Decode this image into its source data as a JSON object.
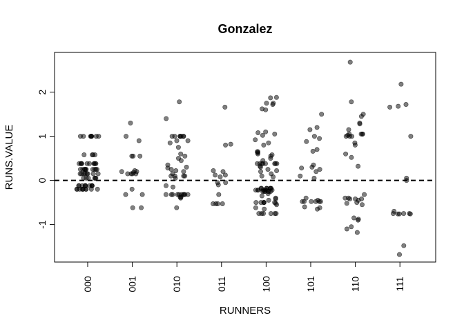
{
  "chart_data": {
    "type": "scatter",
    "title": "Gonzalez",
    "xlabel": "RUNNERS",
    "ylabel": "RUNS.VALUE",
    "categories": [
      "000",
      "001",
      "010",
      "011",
      "100",
      "101",
      "110",
      "111"
    ],
    "yticks": [
      "-1",
      "0",
      "1",
      "2"
    ],
    "ylim": [
      -1.85,
      2.9
    ],
    "grid": false,
    "legend": "none",
    "reference_line": {
      "y": 0,
      "style": "dashed"
    },
    "point_color": "#000000",
    "points": [
      {
        "x": "000",
        "y": 1.0
      },
      {
        "x": "000",
        "y": 1.0
      },
      {
        "x": "000",
        "y": 1.0
      },
      {
        "x": "000",
        "y": 1.0
      },
      {
        "x": "000",
        "y": 1.0
      },
      {
        "x": "000",
        "y": 1.0
      },
      {
        "x": "000",
        "y": 1.0
      },
      {
        "x": "000",
        "y": 1.0
      },
      {
        "x": "000",
        "y": 0.58
      },
      {
        "x": "000",
        "y": 0.58
      },
      {
        "x": "000",
        "y": 0.58
      },
      {
        "x": "000",
        "y": 0.58
      },
      {
        "x": "000",
        "y": 0.38
      },
      {
        "x": "000",
        "y": 0.38
      },
      {
        "x": "000",
        "y": 0.38
      },
      {
        "x": "000",
        "y": 0.38
      },
      {
        "x": "000",
        "y": 0.38
      },
      {
        "x": "000",
        "y": 0.38
      },
      {
        "x": "000",
        "y": 0.38
      },
      {
        "x": "000",
        "y": 0.38
      },
      {
        "x": "000",
        "y": 0.38
      },
      {
        "x": "000",
        "y": 0.38
      },
      {
        "x": "000",
        "y": 0.25
      },
      {
        "x": "000",
        "y": 0.25
      },
      {
        "x": "000",
        "y": 0.25
      },
      {
        "x": "000",
        "y": 0.25
      },
      {
        "x": "000",
        "y": 0.25
      },
      {
        "x": "000",
        "y": 0.25
      },
      {
        "x": "000",
        "y": 0.25
      },
      {
        "x": "000",
        "y": 0.25
      },
      {
        "x": "000",
        "y": 0.25
      },
      {
        "x": "000",
        "y": 0.25
      },
      {
        "x": "000",
        "y": 0.15
      },
      {
        "x": "000",
        "y": 0.15
      },
      {
        "x": "000",
        "y": 0.15
      },
      {
        "x": "000",
        "y": 0.15
      },
      {
        "x": "000",
        "y": 0.15
      },
      {
        "x": "000",
        "y": 0.15
      },
      {
        "x": "000",
        "y": 0.15
      },
      {
        "x": "000",
        "y": 0.15
      },
      {
        "x": "000",
        "y": 0.05
      },
      {
        "x": "000",
        "y": 0.05
      },
      {
        "x": "000",
        "y": 0.05
      },
      {
        "x": "000",
        "y": 0.05
      },
      {
        "x": "000",
        "y": 0.05
      },
      {
        "x": "000",
        "y": 0.05
      },
      {
        "x": "000",
        "y": -0.12
      },
      {
        "x": "000",
        "y": -0.12
      },
      {
        "x": "000",
        "y": -0.12
      },
      {
        "x": "000",
        "y": -0.12
      },
      {
        "x": "000",
        "y": -0.12
      },
      {
        "x": "000",
        "y": -0.12
      },
      {
        "x": "000",
        "y": -0.12
      },
      {
        "x": "000",
        "y": -0.12
      },
      {
        "x": "000",
        "y": -0.12
      },
      {
        "x": "000",
        "y": -0.12
      },
      {
        "x": "000",
        "y": -0.2
      },
      {
        "x": "000",
        "y": -0.2
      },
      {
        "x": "000",
        "y": -0.2
      },
      {
        "x": "000",
        "y": -0.2
      },
      {
        "x": "000",
        "y": -0.2
      },
      {
        "x": "000",
        "y": -0.2
      },
      {
        "x": "000",
        "y": -0.2
      },
      {
        "x": "000",
        "y": -0.2
      },
      {
        "x": "000",
        "y": -0.2
      },
      {
        "x": "000",
        "y": -0.2
      },
      {
        "x": "001",
        "y": 1.3
      },
      {
        "x": "001",
        "y": 1.0
      },
      {
        "x": "001",
        "y": 0.9
      },
      {
        "x": "001",
        "y": 0.55
      },
      {
        "x": "001",
        "y": 0.55
      },
      {
        "x": "001",
        "y": 0.55
      },
      {
        "x": "001",
        "y": 0.22
      },
      {
        "x": "001",
        "y": 0.2
      },
      {
        "x": "001",
        "y": 0.2
      },
      {
        "x": "001",
        "y": 0.18
      },
      {
        "x": "001",
        "y": 0.15
      },
      {
        "x": "001",
        "y": 0.15
      },
      {
        "x": "001",
        "y": 0.15
      },
      {
        "x": "001",
        "y": 0.15
      },
      {
        "x": "001",
        "y": -0.2
      },
      {
        "x": "001",
        "y": -0.32
      },
      {
        "x": "001",
        "y": -0.32
      },
      {
        "x": "001",
        "y": -0.62
      },
      {
        "x": "001",
        "y": -0.62
      },
      {
        "x": "010",
        "y": 1.78
      },
      {
        "x": "010",
        "y": 1.4
      },
      {
        "x": "010",
        "y": 1.0
      },
      {
        "x": "010",
        "y": 1.0
      },
      {
        "x": "010",
        "y": 1.0
      },
      {
        "x": "010",
        "y": 1.0
      },
      {
        "x": "010",
        "y": 1.0
      },
      {
        "x": "010",
        "y": 1.0
      },
      {
        "x": "010",
        "y": 1.0
      },
      {
        "x": "010",
        "y": 0.9
      },
      {
        "x": "010",
        "y": 0.9
      },
      {
        "x": "010",
        "y": 0.85
      },
      {
        "x": "010",
        "y": 0.75
      },
      {
        "x": "010",
        "y": 0.6
      },
      {
        "x": "010",
        "y": 0.55
      },
      {
        "x": "010",
        "y": 0.5
      },
      {
        "x": "010",
        "y": 0.45
      },
      {
        "x": "010",
        "y": 0.35
      },
      {
        "x": "010",
        "y": 0.3
      },
      {
        "x": "010",
        "y": 0.28
      },
      {
        "x": "010",
        "y": 0.25
      },
      {
        "x": "010",
        "y": 0.22
      },
      {
        "x": "010",
        "y": 0.2
      },
      {
        "x": "010",
        "y": 0.15
      },
      {
        "x": "010",
        "y": 0.1
      },
      {
        "x": "010",
        "y": 0.1
      },
      {
        "x": "010",
        "y": 0.1
      },
      {
        "x": "010",
        "y": 0.1
      },
      {
        "x": "010",
        "y": 0.05
      },
      {
        "x": "010",
        "y": -0.12
      },
      {
        "x": "010",
        "y": -0.15
      },
      {
        "x": "010",
        "y": -0.32
      },
      {
        "x": "010",
        "y": -0.32
      },
      {
        "x": "010",
        "y": -0.32
      },
      {
        "x": "010",
        "y": -0.32
      },
      {
        "x": "010",
        "y": -0.32
      },
      {
        "x": "010",
        "y": -0.32
      },
      {
        "x": "010",
        "y": -0.32
      },
      {
        "x": "010",
        "y": -0.32
      },
      {
        "x": "010",
        "y": -0.32
      },
      {
        "x": "010",
        "y": -0.32
      },
      {
        "x": "010",
        "y": -0.38
      },
      {
        "x": "010",
        "y": -0.38
      },
      {
        "x": "010",
        "y": -0.4
      },
      {
        "x": "010",
        "y": -0.62
      },
      {
        "x": "011",
        "y": 1.66
      },
      {
        "x": "011",
        "y": 0.82
      },
      {
        "x": "011",
        "y": 0.8
      },
      {
        "x": "011",
        "y": 0.22
      },
      {
        "x": "011",
        "y": 0.2
      },
      {
        "x": "011",
        "y": 0.12
      },
      {
        "x": "011",
        "y": 0.12
      },
      {
        "x": "011",
        "y": 0.08
      },
      {
        "x": "011",
        "y": -0.05
      },
      {
        "x": "011",
        "y": -0.05
      },
      {
        "x": "011",
        "y": -0.1
      },
      {
        "x": "011",
        "y": -0.32
      },
      {
        "x": "011",
        "y": -0.53
      },
      {
        "x": "011",
        "y": -0.53
      },
      {
        "x": "011",
        "y": -0.53
      },
      {
        "x": "011",
        "y": -0.53
      },
      {
        "x": "100",
        "y": 1.88
      },
      {
        "x": "100",
        "y": 1.87
      },
      {
        "x": "100",
        "y": 1.75
      },
      {
        "x": "100",
        "y": 1.75
      },
      {
        "x": "100",
        "y": 1.72
      },
      {
        "x": "100",
        "y": 1.62
      },
      {
        "x": "100",
        "y": 1.6
      },
      {
        "x": "100",
        "y": 1.1
      },
      {
        "x": "100",
        "y": 1.08
      },
      {
        "x": "100",
        "y": 1.05
      },
      {
        "x": "100",
        "y": 1.02
      },
      {
        "x": "100",
        "y": 0.92
      },
      {
        "x": "100",
        "y": 0.85
      },
      {
        "x": "100",
        "y": 0.8
      },
      {
        "x": "100",
        "y": 0.65
      },
      {
        "x": "100",
        "y": 0.65
      },
      {
        "x": "100",
        "y": 0.62
      },
      {
        "x": "100",
        "y": 0.6
      },
      {
        "x": "100",
        "y": 0.58
      },
      {
        "x": "100",
        "y": 0.55
      },
      {
        "x": "100",
        "y": 0.5
      },
      {
        "x": "100",
        "y": 0.45
      },
      {
        "x": "100",
        "y": 0.38
      },
      {
        "x": "100",
        "y": 0.38
      },
      {
        "x": "100",
        "y": 0.38
      },
      {
        "x": "100",
        "y": 0.38
      },
      {
        "x": "100",
        "y": 0.38
      },
      {
        "x": "100",
        "y": 0.38
      },
      {
        "x": "100",
        "y": 0.38
      },
      {
        "x": "100",
        "y": 0.38
      },
      {
        "x": "100",
        "y": 0.32
      },
      {
        "x": "100",
        "y": 0.3
      },
      {
        "x": "100",
        "y": 0.25
      },
      {
        "x": "100",
        "y": 0.22
      },
      {
        "x": "100",
        "y": 0.2
      },
      {
        "x": "100",
        "y": 0.15
      },
      {
        "x": "100",
        "y": 0.1
      },
      {
        "x": "100",
        "y": 0.08
      },
      {
        "x": "100",
        "y": -0.18
      },
      {
        "x": "100",
        "y": -0.18
      },
      {
        "x": "100",
        "y": -0.18
      },
      {
        "x": "100",
        "y": -0.18
      },
      {
        "x": "100",
        "y": -0.18
      },
      {
        "x": "100",
        "y": -0.18
      },
      {
        "x": "100",
        "y": -0.18
      },
      {
        "x": "100",
        "y": -0.22
      },
      {
        "x": "100",
        "y": -0.22
      },
      {
        "x": "100",
        "y": -0.22
      },
      {
        "x": "100",
        "y": -0.22
      },
      {
        "x": "100",
        "y": -0.22
      },
      {
        "x": "100",
        "y": -0.22
      },
      {
        "x": "100",
        "y": -0.22
      },
      {
        "x": "100",
        "y": -0.25
      },
      {
        "x": "100",
        "y": -0.25
      },
      {
        "x": "100",
        "y": -0.25
      },
      {
        "x": "100",
        "y": -0.25
      },
      {
        "x": "100",
        "y": -0.25
      },
      {
        "x": "100",
        "y": -0.25
      },
      {
        "x": "100",
        "y": -0.3
      },
      {
        "x": "100",
        "y": -0.35
      },
      {
        "x": "100",
        "y": -0.4
      },
      {
        "x": "100",
        "y": -0.42
      },
      {
        "x": "100",
        "y": -0.45
      },
      {
        "x": "100",
        "y": -0.5
      },
      {
        "x": "100",
        "y": -0.5
      },
      {
        "x": "100",
        "y": -0.5
      },
      {
        "x": "100",
        "y": -0.5
      },
      {
        "x": "100",
        "y": -0.5
      },
      {
        "x": "100",
        "y": -0.5
      },
      {
        "x": "100",
        "y": -0.52
      },
      {
        "x": "100",
        "y": -0.55
      },
      {
        "x": "100",
        "y": -0.62
      },
      {
        "x": "100",
        "y": -0.65
      },
      {
        "x": "100",
        "y": -0.75
      },
      {
        "x": "100",
        "y": -0.75
      },
      {
        "x": "100",
        "y": -0.75
      },
      {
        "x": "100",
        "y": -0.75
      },
      {
        "x": "100",
        "y": -0.75
      },
      {
        "x": "100",
        "y": -0.75
      },
      {
        "x": "101",
        "y": 1.5
      },
      {
        "x": "101",
        "y": 1.2
      },
      {
        "x": "101",
        "y": 1.15
      },
      {
        "x": "101",
        "y": 1.0
      },
      {
        "x": "101",
        "y": 0.95
      },
      {
        "x": "101",
        "y": 0.88
      },
      {
        "x": "101",
        "y": 0.7
      },
      {
        "x": "101",
        "y": 0.66
      },
      {
        "x": "101",
        "y": 0.35
      },
      {
        "x": "101",
        "y": 0.3
      },
      {
        "x": "101",
        "y": 0.28
      },
      {
        "x": "101",
        "y": 0.25
      },
      {
        "x": "101",
        "y": 0.2
      },
      {
        "x": "101",
        "y": 0.1
      },
      {
        "x": "101",
        "y": 0.05
      },
      {
        "x": "101",
        "y": -0.4
      },
      {
        "x": "101",
        "y": -0.45
      },
      {
        "x": "101",
        "y": -0.48
      },
      {
        "x": "101",
        "y": -0.48
      },
      {
        "x": "101",
        "y": -0.48
      },
      {
        "x": "101",
        "y": -0.48
      },
      {
        "x": "101",
        "y": -0.48
      },
      {
        "x": "101",
        "y": -0.48
      },
      {
        "x": "101",
        "y": -0.6
      },
      {
        "x": "101",
        "y": -0.62
      },
      {
        "x": "101",
        "y": -0.65
      },
      {
        "x": "110",
        "y": 2.68
      },
      {
        "x": "110",
        "y": 1.78
      },
      {
        "x": "110",
        "y": 1.5
      },
      {
        "x": "110",
        "y": 1.45
      },
      {
        "x": "110",
        "y": 1.3
      },
      {
        "x": "110",
        "y": 1.28
      },
      {
        "x": "110",
        "y": 1.15
      },
      {
        "x": "110",
        "y": 1.05
      },
      {
        "x": "110",
        "y": 1.05
      },
      {
        "x": "110",
        "y": 1.05
      },
      {
        "x": "110",
        "y": 1.05
      },
      {
        "x": "110",
        "y": 1.02
      },
      {
        "x": "110",
        "y": 1.0
      },
      {
        "x": "110",
        "y": 1.0
      },
      {
        "x": "110",
        "y": 1.0
      },
      {
        "x": "110",
        "y": 0.85
      },
      {
        "x": "110",
        "y": 0.8
      },
      {
        "x": "110",
        "y": 0.6
      },
      {
        "x": "110",
        "y": 0.52
      },
      {
        "x": "110",
        "y": 0.32
      },
      {
        "x": "110",
        "y": -0.32
      },
      {
        "x": "110",
        "y": -0.4
      },
      {
        "x": "110",
        "y": -0.4
      },
      {
        "x": "110",
        "y": -0.42
      },
      {
        "x": "110",
        "y": -0.42
      },
      {
        "x": "110",
        "y": -0.42
      },
      {
        "x": "110",
        "y": -0.45
      },
      {
        "x": "110",
        "y": -0.5
      },
      {
        "x": "110",
        "y": -0.52
      },
      {
        "x": "110",
        "y": -0.55
      },
      {
        "x": "110",
        "y": -0.85
      },
      {
        "x": "110",
        "y": -0.88
      },
      {
        "x": "110",
        "y": -0.9
      },
      {
        "x": "110",
        "y": -1.05
      },
      {
        "x": "110",
        "y": -1.1
      },
      {
        "x": "110",
        "y": -1.18
      },
      {
        "x": "111",
        "y": 2.18
      },
      {
        "x": "111",
        "y": 1.72
      },
      {
        "x": "111",
        "y": 1.68
      },
      {
        "x": "111",
        "y": 1.66
      },
      {
        "x": "111",
        "y": 1.0
      },
      {
        "x": "111",
        "y": 0.05
      },
      {
        "x": "111",
        "y": 0.0
      },
      {
        "x": "111",
        "y": -0.7
      },
      {
        "x": "111",
        "y": -0.75
      },
      {
        "x": "111",
        "y": -0.75
      },
      {
        "x": "111",
        "y": -0.75
      },
      {
        "x": "111",
        "y": -0.76
      },
      {
        "x": "111",
        "y": -0.76
      },
      {
        "x": "111",
        "y": -0.76
      },
      {
        "x": "111",
        "y": -1.48
      },
      {
        "x": "111",
        "y": -1.68
      }
    ]
  }
}
